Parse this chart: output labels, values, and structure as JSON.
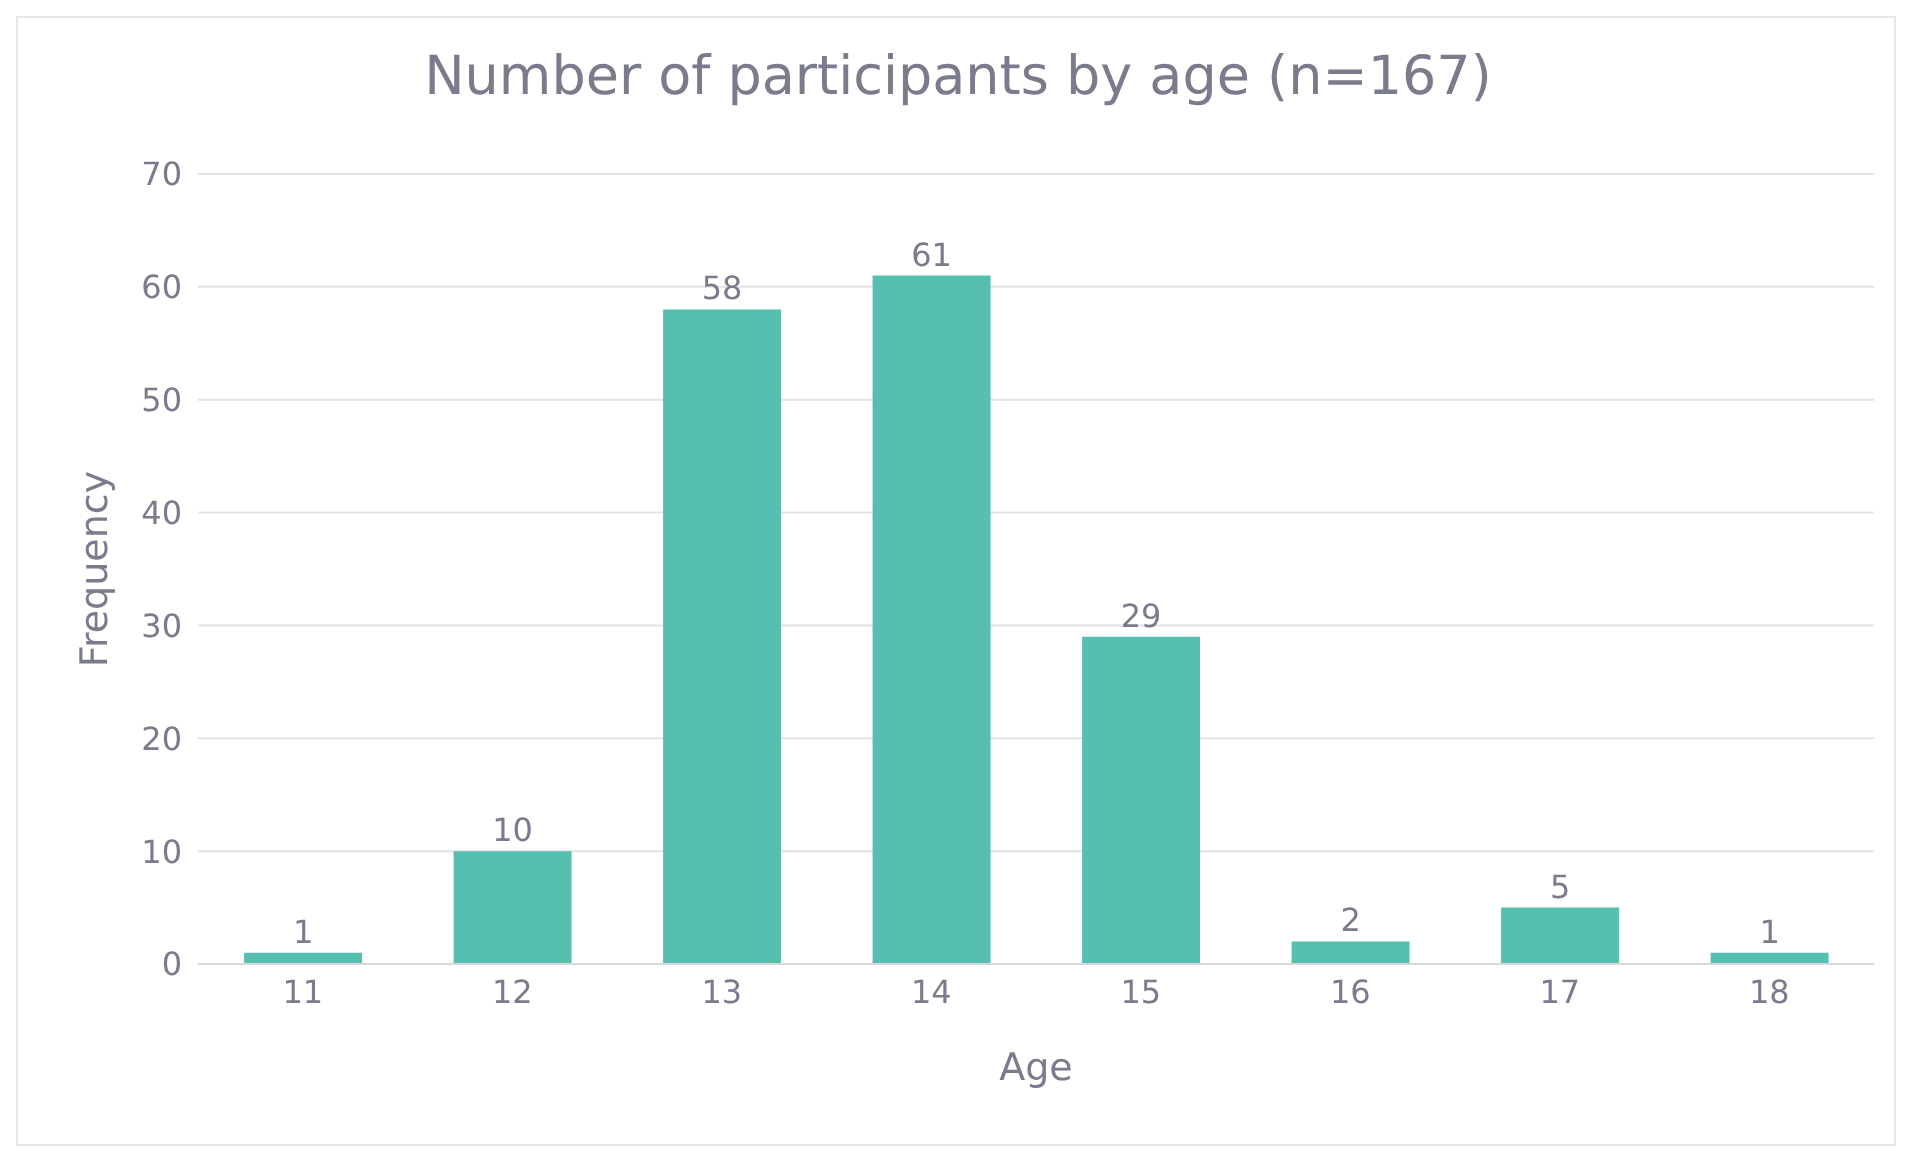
{
  "chart_data": {
    "type": "bar",
    "title": "Number of participants by age (n=167)",
    "xlabel": "Age",
    "ylabel": "Frequency",
    "categories": [
      "11",
      "12",
      "13",
      "14",
      "15",
      "16",
      "17",
      "18"
    ],
    "values": [
      1,
      10,
      58,
      61,
      29,
      2,
      5,
      1
    ],
    "color": "#56bfb0",
    "ylim": [
      0,
      70
    ],
    "yticks": [
      0,
      10,
      20,
      30,
      40,
      50,
      60,
      70
    ],
    "grid": "y",
    "data_labels": true
  }
}
